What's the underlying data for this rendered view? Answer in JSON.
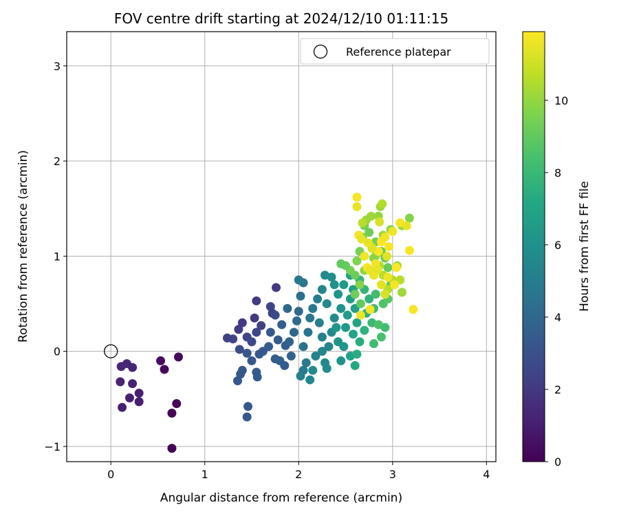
{
  "chart_data": {
    "type": "scatter",
    "title": "FOV centre drift starting at 2024/12/10 01:11:15",
    "xlabel": "Angular distance from reference (arcmin)",
    "ylabel": "Rotation from reference (arcmin)",
    "xlim": [
      -0.47,
      4.1
    ],
    "ylim": [
      -1.16,
      3.36
    ],
    "xticks": [
      0,
      1,
      2,
      3,
      4
    ],
    "yticks": [
      -1,
      0,
      1,
      2,
      3
    ],
    "grid": true,
    "legend": {
      "placement": "top-right",
      "entries": [
        "Reference platepar"
      ]
    },
    "colorbar": {
      "label": "Hours from first FF file",
      "colormap": "viridis",
      "range": [
        0,
        11.9
      ],
      "ticks": [
        0,
        2,
        4,
        6,
        8,
        10
      ]
    },
    "reference_point": {
      "x": 0,
      "y": 0
    },
    "points": [
      [
        0.65,
        -1.02,
        0.1
      ],
      [
        0.7,
        -0.55,
        0.15
      ],
      [
        0.65,
        -0.65,
        0.15
      ],
      [
        0.57,
        -0.19,
        0.3
      ],
      [
        0.53,
        -0.1,
        0.4
      ],
      [
        0.72,
        -0.06,
        0.3
      ],
      [
        0.12,
        -0.59,
        1.1
      ],
      [
        0.2,
        -0.49,
        1.1
      ],
      [
        0.3,
        -0.53,
        1.1
      ],
      [
        0.3,
        -0.44,
        1.1
      ],
      [
        0.23,
        -0.34,
        1.2
      ],
      [
        0.1,
        -0.32,
        1.2
      ],
      [
        0.11,
        -0.16,
        1.3
      ],
      [
        0.17,
        -0.13,
        1.3
      ],
      [
        0.23,
        -0.17,
        1.3
      ],
      [
        1.45,
        -0.69,
        3.3
      ],
      [
        1.46,
        -0.58,
        3.3
      ],
      [
        1.35,
        -0.31,
        3.3
      ],
      [
        1.38,
        -0.24,
        3.3
      ],
      [
        1.4,
        -0.2,
        3.3
      ],
      [
        1.5,
        -0.1,
        3.3
      ],
      [
        1.55,
        -0.22,
        3.4
      ],
      [
        1.56,
        -0.27,
        3.4
      ],
      [
        1.45,
        -0.02,
        3.2
      ],
      [
        1.58,
        -0.03,
        3.4
      ],
      [
        1.62,
        0.0,
        3.3
      ],
      [
        1.37,
        0.02,
        2.8
      ],
      [
        1.3,
        0.13,
        2.5
      ],
      [
        1.24,
        0.14,
        2.3
      ],
      [
        1.36,
        0.23,
        2.1
      ],
      [
        1.4,
        0.3,
        2.0
      ],
      [
        1.45,
        0.15,
        2.5
      ],
      [
        1.5,
        0.1,
        2.7
      ],
      [
        1.55,
        0.2,
        2.5
      ],
      [
        1.53,
        0.35,
        2.0
      ],
      [
        1.6,
        0.27,
        2.3
      ],
      [
        1.55,
        0.53,
        2.1
      ],
      [
        1.7,
        0.47,
        2.5
      ],
      [
        1.76,
        0.67,
        2.0
      ],
      [
        1.72,
        0.4,
        2.3
      ],
      [
        1.75,
        0.38,
        2.7
      ],
      [
        1.68,
        0.05,
        3.5
      ],
      [
        1.75,
        -0.08,
        3.6
      ],
      [
        1.8,
        -0.1,
        3.6
      ],
      [
        1.85,
        -0.15,
        3.5
      ],
      [
        1.7,
        0.2,
        3.3
      ],
      [
        1.78,
        0.12,
        3.5
      ],
      [
        1.82,
        0.28,
        3.6
      ],
      [
        1.86,
        0.06,
        3.6
      ],
      [
        1.9,
        0.1,
        3.8
      ],
      [
        1.92,
        -0.05,
        3.8
      ],
      [
        1.95,
        0.2,
        4.0
      ],
      [
        1.98,
        0.32,
        4.1
      ],
      [
        2.0,
        0.42,
        4.0
      ],
      [
        1.88,
        0.45,
        4.0
      ],
      [
        2.02,
        0.58,
        4.4
      ],
      [
        2.0,
        0.75,
        4.6
      ],
      [
        2.05,
        0.72,
        4.7
      ],
      [
        2.05,
        0.05,
        4.5
      ],
      [
        2.08,
        -0.12,
        4.8
      ],
      [
        2.05,
        -0.2,
        4.9
      ],
      [
        2.02,
        -0.26,
        5.1
      ],
      [
        2.12,
        -0.3,
        5.5
      ],
      [
        2.15,
        -0.2,
        5.6
      ],
      [
        2.18,
        -0.05,
        5.3
      ],
      [
        2.1,
        0.2,
        4.6
      ],
      [
        2.12,
        0.35,
        4.7
      ],
      [
        2.15,
        0.45,
        4.8
      ],
      [
        2.2,
        0.55,
        5.0
      ],
      [
        2.22,
        0.3,
        5.1
      ],
      [
        2.25,
        0.15,
        5.2
      ],
      [
        2.25,
        0.0,
        5.4
      ],
      [
        2.28,
        -0.12,
        5.6
      ],
      [
        2.3,
        -0.18,
        5.7
      ],
      [
        2.32,
        0.05,
        5.5
      ],
      [
        2.35,
        0.2,
        5.6
      ],
      [
        2.38,
        0.35,
        5.7
      ],
      [
        2.3,
        0.5,
        5.5
      ],
      [
        2.25,
        0.65,
        5.4
      ],
      [
        2.28,
        0.8,
        5.6
      ],
      [
        2.35,
        0.78,
        5.8
      ],
      [
        2.38,
        0.7,
        6.0
      ],
      [
        2.42,
        0.6,
        6.2
      ],
      [
        2.45,
        0.45,
        6.1
      ],
      [
        2.4,
        0.25,
        6.2
      ],
      [
        2.42,
        0.1,
        6.1
      ],
      [
        2.45,
        -0.1,
        6.1
      ],
      [
        2.48,
        0.05,
        6.3
      ],
      [
        2.5,
        0.25,
        6.4
      ],
      [
        2.52,
        0.38,
        6.5
      ],
      [
        2.55,
        0.55,
        6.6
      ],
      [
        2.48,
        0.7,
        6.5
      ],
      [
        2.55,
        0.8,
        6.8
      ],
      [
        2.58,
        0.65,
        6.7
      ],
      [
        2.6,
        0.45,
        6.8
      ],
      [
        2.62,
        0.3,
        7.0
      ],
      [
        2.58,
        0.18,
        7.0
      ],
      [
        2.55,
        -0.05,
        6.9
      ],
      [
        2.6,
        -0.15,
        7.2
      ],
      [
        2.62,
        -0.03,
        7.4
      ],
      [
        2.65,
        0.1,
        7.4
      ],
      [
        2.7,
        0.22,
        7.6
      ],
      [
        2.72,
        0.4,
        7.6
      ],
      [
        2.75,
        0.55,
        7.7
      ],
      [
        2.7,
        0.65,
        7.8
      ],
      [
        2.65,
        0.75,
        7.8
      ],
      [
        2.78,
        0.3,
        8.0
      ],
      [
        2.8,
        0.45,
        8.1
      ],
      [
        2.82,
        0.6,
        8.2
      ],
      [
        2.88,
        0.15,
        8.4
      ],
      [
        2.92,
        0.25,
        8.3
      ],
      [
        2.8,
        0.08,
        8.2
      ],
      [
        2.85,
        0.28,
        8.5
      ],
      [
        2.9,
        0.5,
        8.6
      ],
      [
        2.95,
        0.55,
        8.8
      ],
      [
        2.98,
        0.7,
        9.0
      ],
      [
        2.95,
        0.88,
        9.1
      ],
      [
        2.92,
        0.98,
        9.2
      ],
      [
        2.88,
        1.05,
        9.2
      ],
      [
        2.82,
        1.15,
        9.3
      ],
      [
        2.75,
        1.25,
        9.3
      ],
      [
        2.7,
        1.32,
        9.4
      ],
      [
        2.68,
        1.2,
        9.5
      ],
      [
        2.65,
        1.05,
        9.5
      ],
      [
        2.62,
        0.95,
        9.6
      ],
      [
        2.6,
        0.8,
        9.2
      ],
      [
        2.55,
        0.85,
        9.4
      ],
      [
        2.5,
        0.9,
        9.1
      ],
      [
        2.45,
        0.92,
        9.0
      ],
      [
        2.85,
        1.42,
        10.0
      ],
      [
        2.87,
        1.52,
        10.2
      ],
      [
        2.89,
        1.55,
        10.5
      ],
      [
        2.77,
        1.42,
        10.2
      ],
      [
        2.72,
        1.38,
        10.1
      ],
      [
        2.68,
        1.35,
        10.6
      ],
      [
        2.78,
        1.1,
        10.3
      ],
      [
        2.82,
        1.0,
        10.4
      ],
      [
        2.86,
        0.9,
        10.5
      ],
      [
        2.9,
        0.8,
        10.6
      ],
      [
        2.95,
        0.65,
        10.6
      ],
      [
        3.0,
        0.75,
        10.5
      ],
      [
        3.05,
        0.9,
        10.3
      ],
      [
        3.08,
        0.75,
        10.6
      ],
      [
        3.1,
        0.62,
        10.2
      ],
      [
        3.18,
        1.4,
        9.7
      ],
      [
        3.1,
        1.32,
        10.0
      ],
      [
        2.98,
        1.28,
        9.8
      ],
      [
        2.9,
        1.22,
        10.1
      ],
      [
        2.8,
        0.98,
        9.8
      ],
      [
        2.7,
        0.85,
        9.9
      ],
      [
        2.65,
        0.7,
        9.7
      ],
      [
        2.6,
        0.6,
        9.3
      ],
      [
        2.66,
        0.5,
        9.0
      ],
      [
        2.62,
        1.62,
        11.8
      ],
      [
        2.62,
        1.52,
        11.5
      ],
      [
        2.64,
        1.22,
        11.7
      ],
      [
        2.67,
        1.18,
        11.5
      ],
      [
        2.7,
        1.0,
        11.6
      ],
      [
        2.73,
        0.88,
        11.8
      ],
      [
        2.76,
        0.85,
        11.5
      ],
      [
        2.8,
        0.8,
        11.6
      ],
      [
        2.82,
        0.92,
        11.7
      ],
      [
        2.85,
        1.05,
        11.8
      ],
      [
        2.88,
        1.15,
        11.9
      ],
      [
        2.92,
        1.2,
        11.7
      ],
      [
        2.96,
        1.1,
        11.8
      ],
      [
        3.0,
        1.26,
        11.6
      ],
      [
        3.04,
        0.88,
        11.9
      ],
      [
        3.08,
        1.35,
        11.7
      ],
      [
        3.15,
        1.32,
        11.5
      ],
      [
        3.18,
        1.06,
        11.8
      ],
      [
        3.22,
        0.44,
        11.8
      ],
      [
        2.95,
        0.78,
        11.6
      ],
      [
        2.88,
        0.7,
        11.4
      ],
      [
        2.92,
        0.6,
        11.2
      ],
      [
        2.76,
        0.44,
        11.7
      ],
      [
        2.66,
        0.38,
        11.6
      ],
      [
        2.84,
        0.86,
        11.5
      ],
      [
        2.78,
        1.08,
        11.3
      ],
      [
        2.74,
        1.14,
        11.5
      ],
      [
        2.86,
        1.36,
        11.2
      ],
      [
        2.94,
        1.0,
        11.4
      ],
      [
        3.02,
        0.7,
        11.7
      ]
    ]
  }
}
